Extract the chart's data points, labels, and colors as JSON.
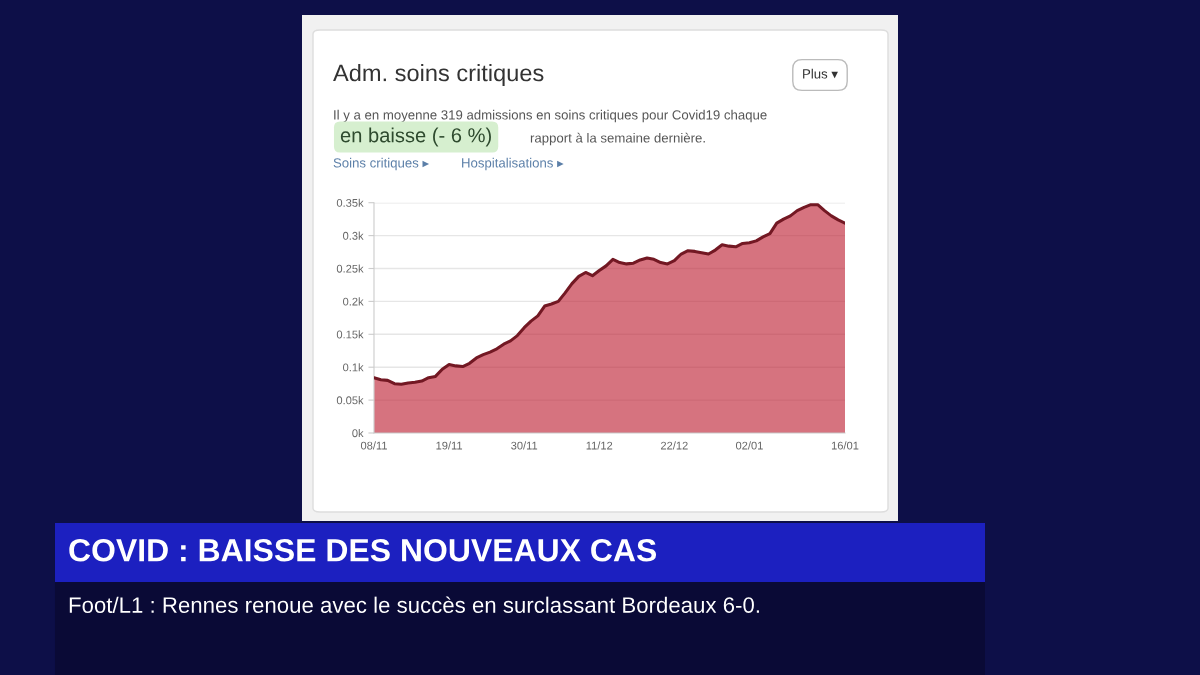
{
  "chart_data": {
    "type": "area",
    "title": "Adm. soins critiques",
    "subtitle": "Il y a en moyenne 319 admissions en soins critiques pour Covid19 chaque",
    "annotations": [
      "en baisse (- 6 %)",
      "rapport à la semaine dernière.",
      "Soins critiques ▸",
      "Hospitalisations ▸",
      "Plus ▾",
      "COVID : BAISSE DES NOUVEAUX CAS",
      "Foot/L1 : Rennes renoue avec le succès en surclassant Bordeaux 6-0."
    ],
    "categories": [
      "08/11",
      null,
      null,
      null,
      null,
      null,
      null,
      null,
      null,
      null,
      null,
      "19/11",
      null,
      null,
      null,
      null,
      null,
      null,
      null,
      null,
      null,
      null,
      "30/11",
      null,
      null,
      null,
      null,
      null,
      null,
      null,
      null,
      null,
      null,
      "11/12",
      null,
      null,
      null,
      null,
      null,
      null,
      null,
      null,
      null,
      null,
      "22/12",
      null,
      null,
      null,
      null,
      null,
      null,
      null,
      null,
      null,
      null,
      "02/01",
      null,
      null,
      null,
      null,
      null,
      null,
      null,
      null,
      null,
      null,
      null,
      null,
      null,
      "16/01"
    ],
    "series": [
      {
        "color": "#c0283a",
        "values": [
          84,
          81,
          80,
          75,
          74,
          76,
          77,
          79,
          84,
          86,
          97,
          104,
          102,
          101,
          106,
          114,
          119,
          123,
          128,
          135,
          140,
          148,
          160,
          170,
          178,
          193,
          196,
          200,
          213,
          227,
          238,
          244,
          239,
          247,
          254,
          264,
          259,
          257,
          258,
          263,
          266,
          264,
          259,
          257,
          262,
          272,
          277,
          276,
          274,
          272,
          278,
          286,
          284,
          283,
          288,
          289,
          292,
          298,
          303,
          319,
          325,
          330,
          338,
          343,
          347,
          347,
          338,
          330,
          324,
          319
        ]
      }
    ],
    "ylim": [
      0,
      350
    ],
    "yticks": [
      {
        "value": 0,
        "label": "0k"
      },
      {
        "value": 50,
        "label": "0.05k"
      },
      {
        "value": 100,
        "label": "0.1k"
      },
      {
        "value": 150,
        "label": "0.15k"
      },
      {
        "value": 200,
        "label": "0.2k"
      },
      {
        "value": 250,
        "label": "0.25k"
      },
      {
        "value": 300,
        "label": "0.3k"
      },
      {
        "value": 350,
        "label": "0.35k"
      }
    ],
    "grid": "y"
  }
}
